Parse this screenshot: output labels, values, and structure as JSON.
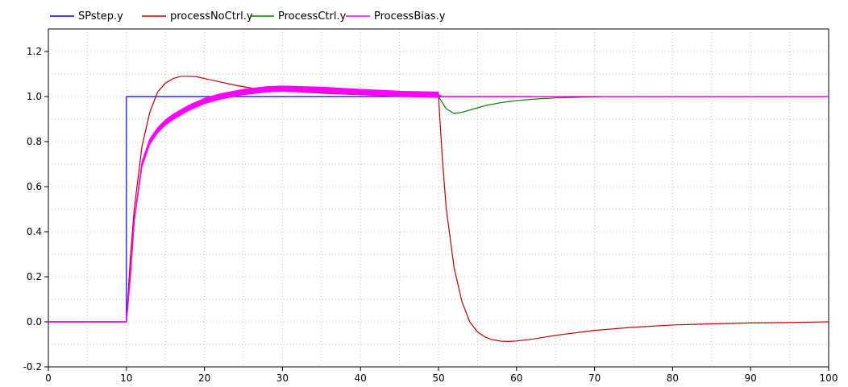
{
  "chart_data": {
    "type": "line",
    "xlim": [
      0,
      100
    ],
    "ylim": [
      -0.2,
      1.3
    ],
    "grid": true,
    "legend_placement": "top-left",
    "xticks": [
      "0",
      "10",
      "20",
      "30",
      "40",
      "50",
      "60",
      "70",
      "80",
      "90",
      "100"
    ],
    "yticks": [
      "-0.2",
      "0.0",
      "0.2",
      "0.4",
      "0.6",
      "0.8",
      "1.0",
      "1.2"
    ],
    "series": [
      {
        "name": "SPstep.y",
        "color": "#0000ff",
        "x": [
          0,
          10,
          10,
          20,
          30,
          40,
          50,
          60,
          62
        ],
        "y": [
          0,
          0,
          1.0,
          1.0,
          1.0,
          1.0,
          1.0,
          1.0,
          1.0
        ]
      },
      {
        "name": "processNoCtrl.y",
        "color": "#c00000",
        "x": [
          0,
          10,
          10.5,
          11,
          12,
          13,
          14,
          15,
          16,
          17,
          18,
          19,
          20,
          22,
          24,
          26,
          28,
          30,
          35,
          40,
          45,
          50,
          50.5,
          51,
          52,
          53,
          54,
          55,
          56,
          57,
          58,
          59,
          60,
          62,
          65,
          70,
          75,
          80,
          85,
          90,
          95,
          100
        ],
        "y": [
          0,
          0,
          0.28,
          0.5,
          0.78,
          0.93,
          1.02,
          1.06,
          1.08,
          1.09,
          1.09,
          1.088,
          1.08,
          1.065,
          1.05,
          1.038,
          1.03,
          1.025,
          1.015,
          1.008,
          1.004,
          1.0,
          0.72,
          0.5,
          0.24,
          0.09,
          0.0,
          -0.045,
          -0.068,
          -0.08,
          -0.086,
          -0.087,
          -0.085,
          -0.077,
          -0.06,
          -0.038,
          -0.024,
          -0.014,
          -0.009,
          -0.005,
          -0.003,
          0.0
        ]
      },
      {
        "name": "ProcessCtrl.y",
        "color": "#008000",
        "x": [
          50,
          51,
          52,
          53,
          54,
          55,
          56,
          58,
          60,
          62,
          65,
          68,
          71
        ],
        "y": [
          1.0,
          0.945,
          0.925,
          0.93,
          0.94,
          0.95,
          0.96,
          0.973,
          0.982,
          0.988,
          0.994,
          0.997,
          1.0
        ]
      },
      {
        "name": "ProcessBias.y",
        "color": "#ff00ff",
        "x": [
          0,
          10,
          10.5,
          11,
          12,
          13,
          14,
          15,
          16,
          18,
          20,
          22,
          25,
          28,
          30,
          35,
          40,
          45,
          50,
          50.5,
          55,
          60,
          70,
          80,
          90,
          100
        ],
        "y": [
          0,
          0,
          0.2,
          0.45,
          0.7,
          0.8,
          0.85,
          0.885,
          0.91,
          0.95,
          0.98,
          1.0,
          1.02,
          1.032,
          1.035,
          1.03,
          1.02,
          1.012,
          1.008,
          1.0,
          1.0,
          1.0,
          1.0,
          1.0,
          1.0,
          1.0
        ]
      }
    ]
  }
}
